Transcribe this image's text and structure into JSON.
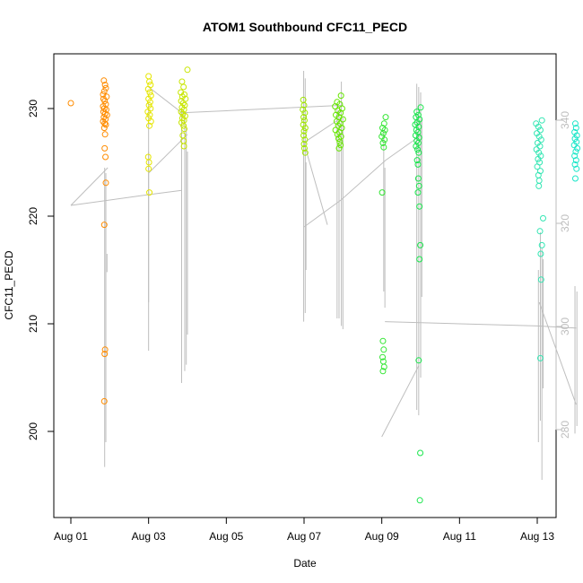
{
  "chart_data": {
    "type": "scatter",
    "title": "ATOM1 Southbound CFC11_PECD",
    "xlabel": "Date",
    "ylabel": "CFC11_PECD",
    "y2label": "",
    "xlim": [
      0.0,
      12.5
    ],
    "ylim": [
      194.5,
      235.0
    ],
    "y2lim": [
      262.0,
      352.0
    ],
    "x_ticks": [
      0,
      2,
      4,
      6,
      8,
      10,
      12
    ],
    "x_tick_labels": [
      "Aug 01",
      "Aug 03",
      "Aug 05",
      "Aug 07",
      "Aug 09",
      "Aug 11",
      "Aug 13"
    ],
    "y_ticks": [
      200,
      210,
      220,
      230
    ],
    "y2_ticks": [
      280,
      300,
      320,
      340
    ],
    "grid": false,
    "legend": "none",
    "colors": {
      "aug01": "#ff8c00",
      "aug03": "#e6e600",
      "aug04": "#c8e600",
      "aug06": "#a0e600",
      "aug07": "#66e600",
      "aug08": "#33e633",
      "aug09": "#1ae64d",
      "aug12": "#33e6b3",
      "aug13": "#1ae6c8",
      "trace": "#bebebe"
    },
    "series": [
      {
        "color_key": "aug01",
        "points": [
          [
            0.0,
            230.5
          ],
          [
            0.85,
            232.6
          ],
          [
            0.88,
            232.2
          ],
          [
            0.9,
            231.9
          ],
          [
            0.86,
            231.6
          ],
          [
            0.83,
            231.3
          ],
          [
            0.92,
            231.1
          ],
          [
            0.84,
            230.9
          ],
          [
            0.87,
            230.7
          ],
          [
            0.9,
            230.4
          ],
          [
            0.83,
            230.2
          ],
          [
            0.86,
            230.0
          ],
          [
            0.91,
            229.9
          ],
          [
            0.84,
            229.7
          ],
          [
            0.88,
            229.5
          ],
          [
            0.93,
            229.4
          ],
          [
            0.85,
            229.2
          ],
          [
            0.89,
            229.0
          ],
          [
            0.83,
            228.8
          ],
          [
            0.87,
            228.6
          ],
          [
            0.9,
            228.5
          ],
          [
            0.86,
            228.2
          ],
          [
            0.88,
            227.6
          ],
          [
            0.87,
            226.3
          ],
          [
            0.89,
            225.5
          ],
          [
            0.9,
            223.1
          ],
          [
            0.86,
            219.2
          ],
          [
            0.88,
            207.6
          ],
          [
            0.87,
            207.2
          ],
          [
            0.86,
            202.8
          ]
        ]
      },
      {
        "color_key": "aug03",
        "points": [
          [
            2.0,
            233.0
          ],
          [
            2.02,
            232.5
          ],
          [
            2.05,
            232.2
          ],
          [
            1.99,
            231.8
          ],
          [
            2.03,
            231.5
          ],
          [
            2.06,
            231.2
          ],
          [
            2.0,
            230.9
          ],
          [
            2.04,
            230.6
          ],
          [
            2.01,
            230.3
          ],
          [
            2.05,
            230.0
          ],
          [
            1.98,
            229.7
          ],
          [
            2.03,
            229.4
          ],
          [
            2.0,
            229.1
          ],
          [
            2.06,
            228.8
          ],
          [
            2.02,
            228.4
          ],
          [
            1.99,
            225.5
          ],
          [
            2.01,
            225.0
          ],
          [
            2.0,
            224.4
          ],
          [
            2.02,
            222.2
          ]
        ]
      },
      {
        "color_key": "aug04",
        "points": [
          [
            3.0,
            233.6
          ],
          [
            2.86,
            232.5
          ],
          [
            2.9,
            232.0
          ],
          [
            2.83,
            231.5
          ],
          [
            2.92,
            231.3
          ],
          [
            2.87,
            231.1
          ],
          [
            2.95,
            230.9
          ],
          [
            2.84,
            230.7
          ],
          [
            2.89,
            230.5
          ],
          [
            2.93,
            230.3
          ],
          [
            2.86,
            230.1
          ],
          [
            2.91,
            229.9
          ],
          [
            2.84,
            229.7
          ],
          [
            2.88,
            229.5
          ],
          [
            2.94,
            229.3
          ],
          [
            2.87,
            229.1
          ],
          [
            2.91,
            228.9
          ],
          [
            2.85,
            228.7
          ],
          [
            2.9,
            228.4
          ],
          [
            2.92,
            228.1
          ],
          [
            2.88,
            227.5
          ],
          [
            2.9,
            227.0
          ],
          [
            2.91,
            226.5
          ]
        ]
      },
      {
        "color_key": "aug06",
        "points": [
          [
            5.98,
            230.8
          ],
          [
            6.0,
            230.3
          ],
          [
            5.97,
            229.9
          ],
          [
            6.02,
            229.6
          ],
          [
            5.99,
            229.2
          ],
          [
            6.01,
            228.9
          ],
          [
            5.98,
            228.5
          ],
          [
            6.03,
            228.2
          ],
          [
            6.0,
            227.9
          ],
          [
            5.99,
            227.5
          ],
          [
            6.02,
            227.1
          ],
          [
            6.0,
            226.7
          ],
          [
            6.01,
            226.3
          ],
          [
            6.03,
            225.9
          ]
        ]
      },
      {
        "color_key": "aug07",
        "points": [
          [
            6.95,
            231.2
          ],
          [
            6.85,
            230.6
          ],
          [
            6.92,
            230.4
          ],
          [
            6.8,
            230.2
          ],
          [
            6.98,
            230.0
          ],
          [
            6.87,
            229.8
          ],
          [
            6.94,
            229.6
          ],
          [
            6.82,
            229.4
          ],
          [
            6.9,
            229.2
          ],
          [
            7.0,
            229.0
          ],
          [
            6.84,
            228.8
          ],
          [
            6.93,
            228.6
          ],
          [
            6.88,
            228.4
          ],
          [
            6.97,
            228.2
          ],
          [
            6.81,
            228.0
          ],
          [
            6.91,
            227.8
          ],
          [
            6.86,
            227.6
          ],
          [
            6.95,
            227.4
          ],
          [
            6.89,
            227.2
          ],
          [
            6.92,
            226.9
          ],
          [
            6.94,
            226.6
          ],
          [
            6.9,
            226.3
          ]
        ]
      },
      {
        "color_key": "aug08",
        "points": [
          [
            8.1,
            229.2
          ],
          [
            8.06,
            228.6
          ],
          [
            8.02,
            228.2
          ],
          [
            8.08,
            228.0
          ],
          [
            8.04,
            227.7
          ],
          [
            8.0,
            227.4
          ],
          [
            8.07,
            227.1
          ],
          [
            8.03,
            226.8
          ],
          [
            8.05,
            226.4
          ],
          [
            8.01,
            222.2
          ],
          [
            8.03,
            208.4
          ],
          [
            8.05,
            207.6
          ],
          [
            8.02,
            206.9
          ],
          [
            8.04,
            206.5
          ],
          [
            8.06,
            206.0
          ],
          [
            8.03,
            205.6
          ]
        ]
      },
      {
        "color_key": "aug09",
        "points": [
          [
            9.0,
            230.1
          ],
          [
            8.9,
            229.7
          ],
          [
            8.94,
            229.4
          ],
          [
            8.88,
            229.2
          ],
          [
            8.97,
            229.0
          ],
          [
            8.91,
            228.7
          ],
          [
            8.86,
            228.5
          ],
          [
            8.95,
            228.3
          ],
          [
            8.89,
            228.0
          ],
          [
            8.93,
            227.8
          ],
          [
            8.87,
            227.5
          ],
          [
            8.96,
            227.3
          ],
          [
            8.9,
            227.0
          ],
          [
            8.94,
            226.8
          ],
          [
            8.88,
            226.5
          ],
          [
            8.92,
            226.2
          ],
          [
            8.95,
            225.9
          ],
          [
            8.91,
            225.2
          ],
          [
            8.93,
            224.8
          ],
          [
            8.94,
            223.5
          ],
          [
            8.96,
            222.8
          ],
          [
            8.93,
            222.2
          ],
          [
            8.97,
            220.9
          ],
          [
            8.99,
            217.3
          ],
          [
            8.97,
            216.0
          ],
          [
            8.95,
            206.6
          ],
          [
            8.99,
            198.0
          ],
          [
            8.98,
            193.6
          ]
        ]
      },
      {
        "color_key": "aug12",
        "points": [
          [
            12.12,
            228.9
          ],
          [
            11.97,
            228.6
          ],
          [
            12.03,
            228.3
          ],
          [
            12.08,
            228.0
          ],
          [
            11.99,
            227.7
          ],
          [
            12.05,
            227.4
          ],
          [
            12.1,
            227.1
          ],
          [
            12.01,
            226.8
          ],
          [
            12.07,
            226.5
          ],
          [
            11.98,
            226.2
          ],
          [
            12.04,
            225.9
          ],
          [
            12.09,
            225.6
          ],
          [
            12.02,
            225.3
          ],
          [
            12.06,
            225.0
          ],
          [
            12.0,
            224.6
          ],
          [
            12.08,
            224.2
          ],
          [
            12.03,
            223.8
          ],
          [
            12.05,
            223.3
          ],
          [
            12.04,
            222.8
          ],
          [
            12.15,
            219.8
          ],
          [
            12.07,
            218.6
          ],
          [
            12.12,
            217.3
          ],
          [
            12.09,
            216.5
          ],
          [
            12.1,
            214.1
          ],
          [
            12.08,
            206.8
          ]
        ]
      },
      {
        "color_key": "aug13",
        "points": [
          [
            12.98,
            228.6
          ],
          [
            13.0,
            228.2
          ],
          [
            12.96,
            227.8
          ],
          [
            13.02,
            227.5
          ],
          [
            12.97,
            227.2
          ],
          [
            13.01,
            226.9
          ],
          [
            12.95,
            226.6
          ],
          [
            13.03,
            226.3
          ],
          [
            12.99,
            226.0
          ],
          [
            12.96,
            225.6
          ],
          [
            13.0,
            225.2
          ],
          [
            12.97,
            224.8
          ],
          [
            13.01,
            224.4
          ],
          [
            12.98,
            223.5
          ]
        ]
      }
    ],
    "trace_segments": [
      [
        0.0,
        221.0,
        0.95,
        224.5
      ],
      [
        0.0,
        221.0,
        2.0,
        222.0
      ],
      [
        2.0,
        222.0,
        2.85,
        222.4
      ],
      [
        2.0,
        224.0,
        3.0,
        227.6
      ],
      [
        2.0,
        232.0,
        2.86,
        229.6
      ],
      [
        2.85,
        229.6,
        7.0,
        230.3
      ],
      [
        5.98,
        226.8,
        6.9,
        229.0
      ],
      [
        6.0,
        219.0,
        6.95,
        221.5
      ],
      [
        6.95,
        221.5,
        8.1,
        225.2
      ],
      [
        8.1,
        225.2,
        9.0,
        227.5
      ],
      [
        6.0,
        226.8,
        6.6,
        219.2
      ],
      [
        8.0,
        199.5,
        8.95,
        206.1
      ],
      [
        8.08,
        210.2,
        12.0,
        209.8
      ],
      [
        12.0,
        209.8,
        13.0,
        209.6
      ],
      [
        12.05,
        212.0,
        13.0,
        202.5
      ]
    ],
    "trace_bursts": [
      [
        0.87,
        224.5,
        196.7
      ],
      [
        0.9,
        224.0,
        199.0
      ],
      [
        0.93,
        216.5,
        214.8
      ],
      [
        2.0,
        230.5,
        207.5
      ],
      [
        2.0,
        226.0,
        212.0
      ],
      [
        2.85,
        230.0,
        204.5
      ],
      [
        2.93,
        229.6,
        205.6
      ],
      [
        2.97,
        228.2,
        206.2
      ],
      [
        3.0,
        226.0,
        209.0
      ],
      [
        5.99,
        233.5,
        210.2
      ],
      [
        6.03,
        232.8,
        211.0
      ],
      [
        6.05,
        225.0,
        215.0
      ],
      [
        6.85,
        230.5,
        210.5
      ],
      [
        6.9,
        229.8,
        210.5
      ],
      [
        6.96,
        232.5,
        209.8
      ],
      [
        7.0,
        229.2,
        209.5
      ],
      [
        8.05,
        228.0,
        213.0
      ],
      [
        8.08,
        224.5,
        211.5
      ],
      [
        8.9,
        232.3,
        202.0
      ],
      [
        8.95,
        232.0,
        201.5
      ],
      [
        9.0,
        231.5,
        205.0
      ],
      [
        9.03,
        229.0,
        212.5
      ],
      [
        12.03,
        215.0,
        199.0
      ],
      [
        12.08,
        218.5,
        201.0
      ],
      [
        12.12,
        217.0,
        195.5
      ],
      [
        12.15,
        216.0,
        204.0
      ],
      [
        12.97,
        213.5,
        199.8
      ],
      [
        13.02,
        213.0,
        200.5
      ]
    ]
  }
}
